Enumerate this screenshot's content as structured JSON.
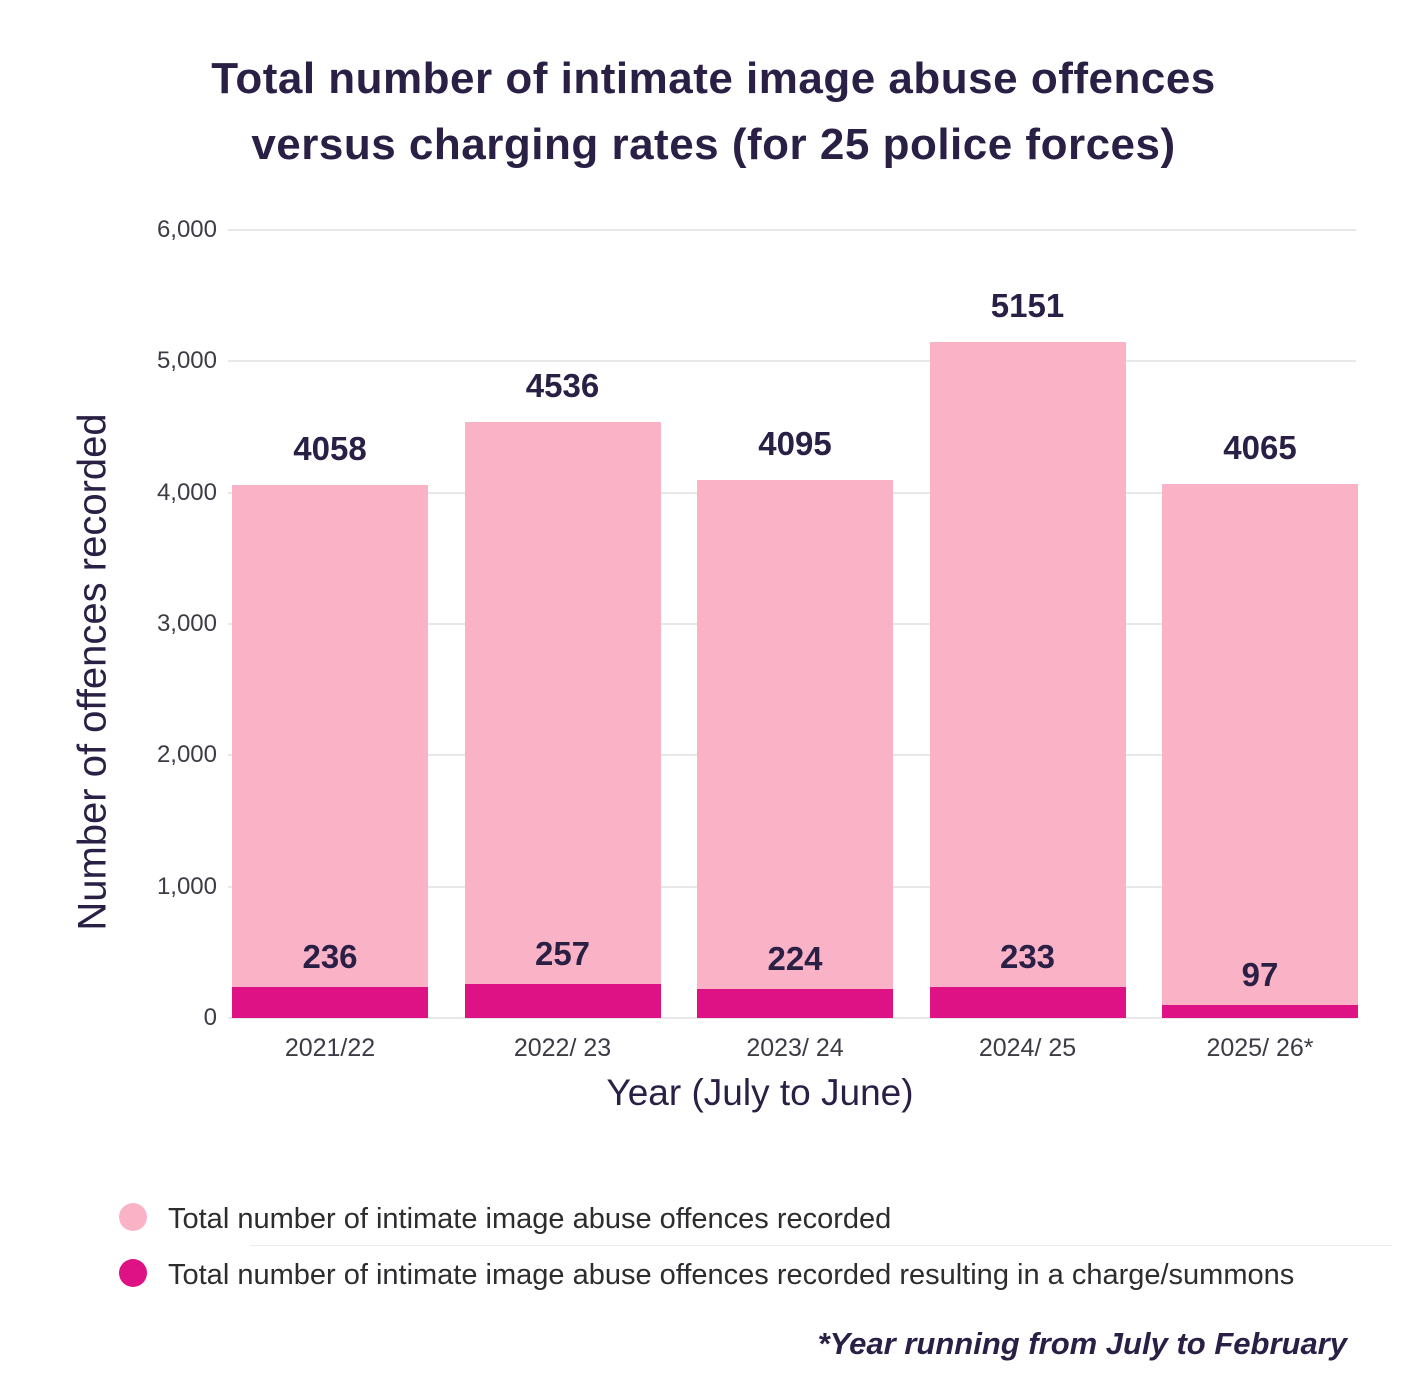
{
  "page": {
    "title_lines": [
      "Total number of intimate image abuse offences",
      "versus charging rates (for 25 police forces)"
    ],
    "footnote": "*Year running from July to February"
  },
  "chart_data": {
    "type": "bar",
    "bar_mode": "overlay",
    "title": "Total number of intimate image abuse offences versus charging rates (for 25 police forces)",
    "xlabel": "Year (July to June)",
    "ylabel": "Number of offences recorded",
    "ylim": [
      0,
      6000
    ],
    "grid": true,
    "legend_position": "bottom",
    "ytick_values": [
      0,
      1000,
      2000,
      3000,
      4000,
      5000,
      6000
    ],
    "ytick_labels": [
      "0",
      "1,000",
      "2,000",
      "3,000",
      "4,000",
      "5,000",
      "6,000"
    ],
    "categories": [
      "2021/22",
      "2022/ 23",
      "2023/ 24",
      "2024/ 25",
      "2025/ 26*"
    ],
    "series": [
      {
        "name": "Total number of intimate image abuse offences recorded",
        "color": "#FAB3C6",
        "values": [
          4058,
          4536,
          4095,
          5151,
          4065
        ]
      },
      {
        "name": "Total number of intimate image abuse offences recorded resulting in a charge/summons",
        "color": "#DE1284",
        "values": [
          236,
          257,
          224,
          233,
          97
        ]
      }
    ],
    "annotations": {
      "footnote": "*Year running from July to February"
    }
  },
  "legend": {
    "items": [
      {
        "label": "Total number of intimate image abuse offences recorded",
        "color": "#FAB3C6"
      },
      {
        "label": "Total number of intimate image abuse offences recorded resulting in a charge/summons",
        "color": "#DE1284"
      }
    ]
  },
  "colors": {
    "title_text": "#2A1F44",
    "axis_text": "#3C3C46",
    "bar_light_pink": "#FAB3C6",
    "bar_magenta": "#DE1284",
    "gridline": "#E8E8EA",
    "legend_text": "#2D2D30"
  }
}
